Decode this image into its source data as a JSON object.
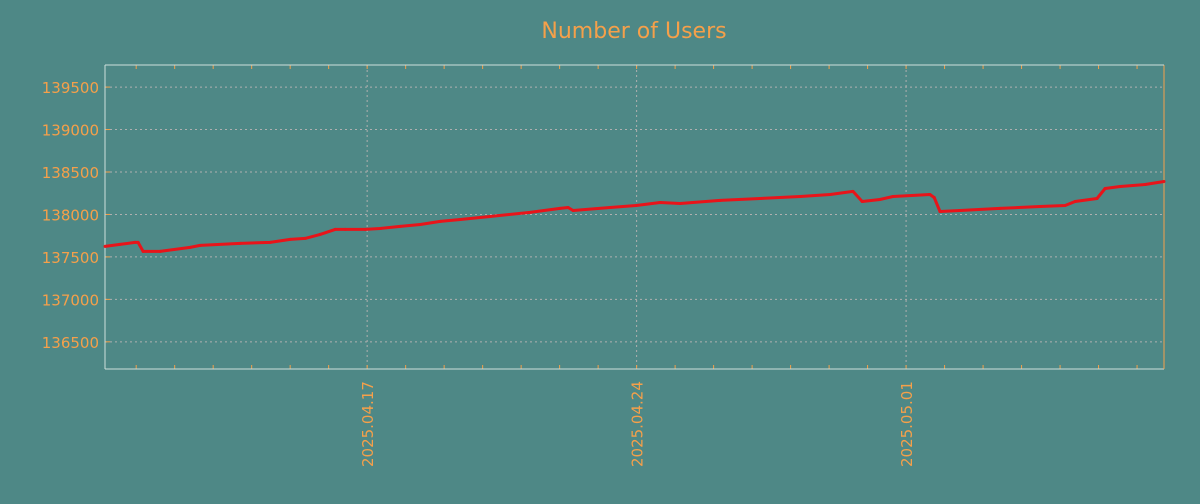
{
  "colors": {
    "background": "#4e8886",
    "text": "#f5a04a",
    "line": "#e8141a",
    "grid": "#b0b0b0"
  },
  "chart_data": {
    "type": "line",
    "title": "Number of Users",
    "xlabel": "",
    "ylabel": "",
    "x_unit": "days since 2025.04.17",
    "xlim": [
      -6.81,
      20.7
    ],
    "ylim": [
      136180,
      139760
    ],
    "grid": true,
    "yticks": [
      136500,
      137000,
      137500,
      138000,
      138500,
      139000,
      139500
    ],
    "xticks": [
      {
        "x": 0,
        "label": "2025.04.17"
      },
      {
        "x": 7,
        "label": "2025.04.24"
      },
      {
        "x": 14,
        "label": "2025.05.01"
      }
    ],
    "x_minor_tick_step_days": 1,
    "series": [
      {
        "name": "Number of Users",
        "x": [
          -6.81,
          -6.42,
          -6.03,
          -5.95,
          -5.82,
          -5.38,
          -4.6,
          -4.34,
          -3.3,
          -2.52,
          -2.0,
          -1.61,
          -1.22,
          -0.83,
          -0.57,
          -0.05,
          0.34,
          0.86,
          1.38,
          1.9,
          2.42,
          3.19,
          4.23,
          5.01,
          5.22,
          5.35,
          6.31,
          6.99,
          7.61,
          8.13,
          9.17,
          10.21,
          11.25,
          12.03,
          12.62,
          12.86,
          13.32,
          13.66,
          14.62,
          14.73,
          14.88,
          15.4,
          16.44,
          17.48,
          18.13,
          18.39,
          18.96,
          19.17,
          19.56,
          20.21,
          20.7
        ],
        "y": [
          137624,
          137647,
          137671,
          137671,
          137565,
          137565,
          137612,
          137635,
          137659,
          137671,
          137706,
          137718,
          137765,
          137824,
          137824,
          137824,
          137835,
          137859,
          137882,
          137918,
          137941,
          137976,
          138024,
          138071,
          138082,
          138047,
          138082,
          138106,
          138141,
          138129,
          138165,
          138188,
          138212,
          138235,
          138271,
          138153,
          138176,
          138212,
          138235,
          138200,
          138035,
          138047,
          138071,
          138094,
          138106,
          138153,
          138188,
          138306,
          138329,
          138353,
          138388
        ]
      }
    ]
  }
}
